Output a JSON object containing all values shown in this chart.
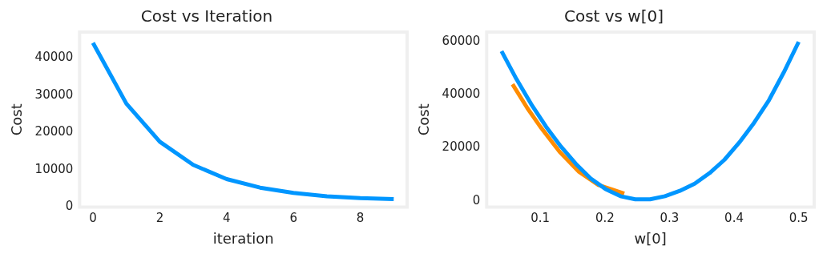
{
  "chart_data": [
    {
      "type": "line",
      "title": "Cost vs Iteration",
      "xlabel": "iteration",
      "ylabel": "Cost",
      "x": [
        0,
        1,
        2,
        3,
        4,
        5,
        6,
        7,
        8,
        9
      ],
      "xlim": [
        -0.4,
        9.4
      ],
      "xticks": [
        0,
        2,
        4,
        6,
        8
      ],
      "ylim": [
        0,
        46900
      ],
      "yticks": [
        0,
        10000,
        20000,
        30000,
        40000
      ],
      "grid": false,
      "legend": false,
      "marker": "none",
      "line_style": "solid",
      "series": [
        {
          "color": "#0096ff",
          "values": [
            44000,
            27700,
            17500,
            11300,
            7500,
            5200,
            3800,
            2900,
            2400,
            2100
          ]
        }
      ]
    },
    {
      "type": "line",
      "title": "Cost vs w[0]",
      "xlabel": "w[0]",
      "ylabel": "Cost",
      "xlim": [
        0.017,
        0.524
      ],
      "xticks": [
        0.1,
        0.2,
        0.3,
        0.4,
        0.5
      ],
      "ylim": [
        -2300,
        63700
      ],
      "yticks": [
        0,
        20000,
        40000,
        60000
      ],
      "grid": false,
      "legend": false,
      "marker": "none",
      "line_style": "solid",
      "series": [
        {
          "color": "#0096ff",
          "x": [
            0.04,
            0.063,
            0.086,
            0.109,
            0.132,
            0.155,
            0.178,
            0.201,
            0.224,
            0.247,
            0.27,
            0.293,
            0.316,
            0.339,
            0.362,
            0.385,
            0.408,
            0.431,
            0.454,
            0.477,
            0.5
          ],
          "values": [
            56500,
            46000,
            36500,
            28000,
            20500,
            14000,
            8500,
            4500,
            1800,
            600,
            600,
            1800,
            3800,
            6500,
            10500,
            15500,
            22000,
            29500,
            38000,
            48500,
            60000
          ]
        },
        {
          "color": "#ff8c00",
          "x": [
            0.057,
            0.08,
            0.1,
            0.13,
            0.16,
            0.19,
            0.23
          ],
          "values": [
            44000,
            35000,
            28000,
            18500,
            11000,
            6000,
            2800
          ]
        }
      ]
    }
  ]
}
